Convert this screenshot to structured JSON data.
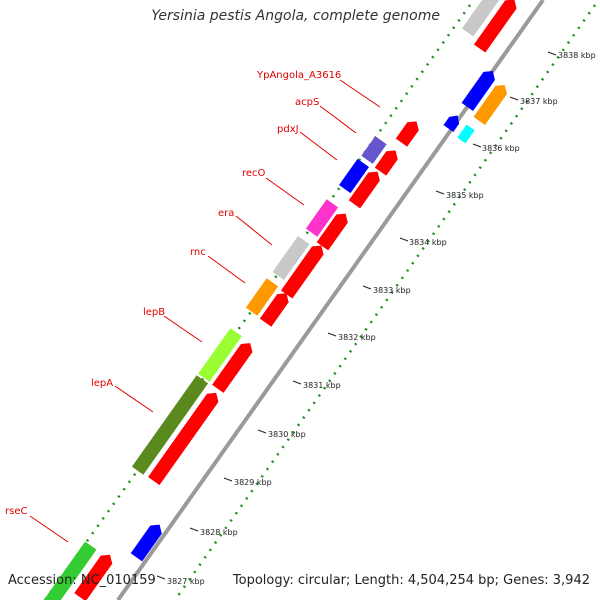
{
  "title": "Yersinia pestis Angola, complete genome",
  "footer": {
    "accession": "Accession: NC_010159",
    "summary": "Topology: circular; Length: 4,504,254 bp; Genes: 3,942"
  },
  "gene_labels": [
    "YpAngola_A3616",
    "acpS",
    "pdxJ",
    "recO",
    "era",
    "rnc",
    "lepB",
    "lepA",
    "rseC"
  ],
  "ticks": [
    "3838 kbp",
    "3837 kbp",
    "3836 kbp",
    "3835 kbp",
    "3834 kbp",
    "3833 kbp",
    "3832 kbp",
    "3831 kbp",
    "3830 kbp",
    "3829 kbp",
    "3828 kbp",
    "3827 kbp"
  ],
  "colors": {
    "backbone": "#9a9a9a",
    "cds_red": "#ff0000",
    "blue": "#0000ff",
    "orange": "#ff9900",
    "gray": "#c8c8c8",
    "magenta": "#ff33cc",
    "lime": "#99ff33",
    "olive": "#5a8a1e",
    "green": "#33cc33",
    "cyan": "#00ffff",
    "purple": "#6655cc",
    "dots": "#228b22",
    "label": "#e00000"
  }
}
